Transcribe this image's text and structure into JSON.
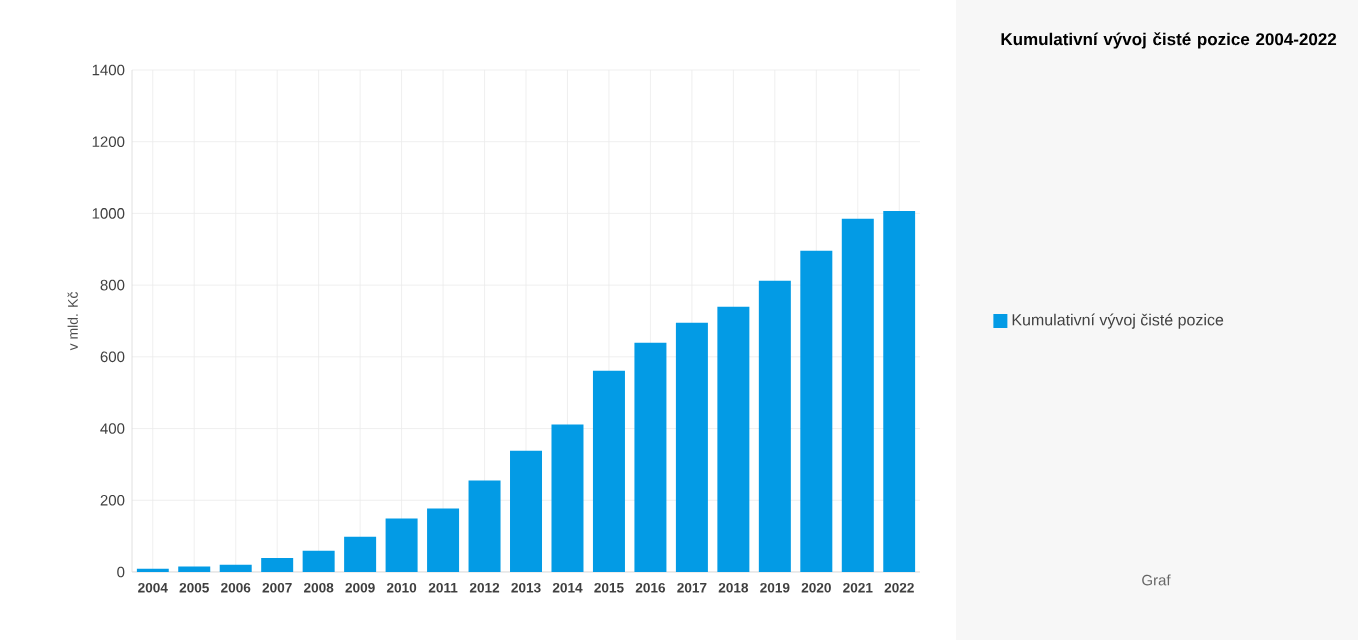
{
  "chart_data": {
    "type": "bar",
    "title": "Kumulativní vývoj čisté pozice 2004-2022",
    "ylabel": "v mld. Kč",
    "categories": [
      "2004",
      "2005",
      "2006",
      "2007",
      "2008",
      "2009",
      "2010",
      "2011",
      "2012",
      "2013",
      "2014",
      "2015",
      "2016",
      "2017",
      "2018",
      "2019",
      "2020",
      "2021",
      "2022"
    ],
    "series": [
      {
        "name": "Kumulativní vývoj čisté pozice",
        "color": "#039be5",
        "values": [
          9,
          15,
          20,
          39,
          59,
          98,
          149,
          177,
          255,
          338,
          411,
          561,
          639,
          695,
          740,
          812,
          896,
          985,
          1007
        ]
      }
    ],
    "ylim": [
      0,
      1400
    ],
    "yticks": [
      0,
      200,
      400,
      600,
      800,
      1000,
      1200,
      1400
    ],
    "grid": true,
    "legend": "right",
    "annotations": [
      "Graf"
    ]
  }
}
